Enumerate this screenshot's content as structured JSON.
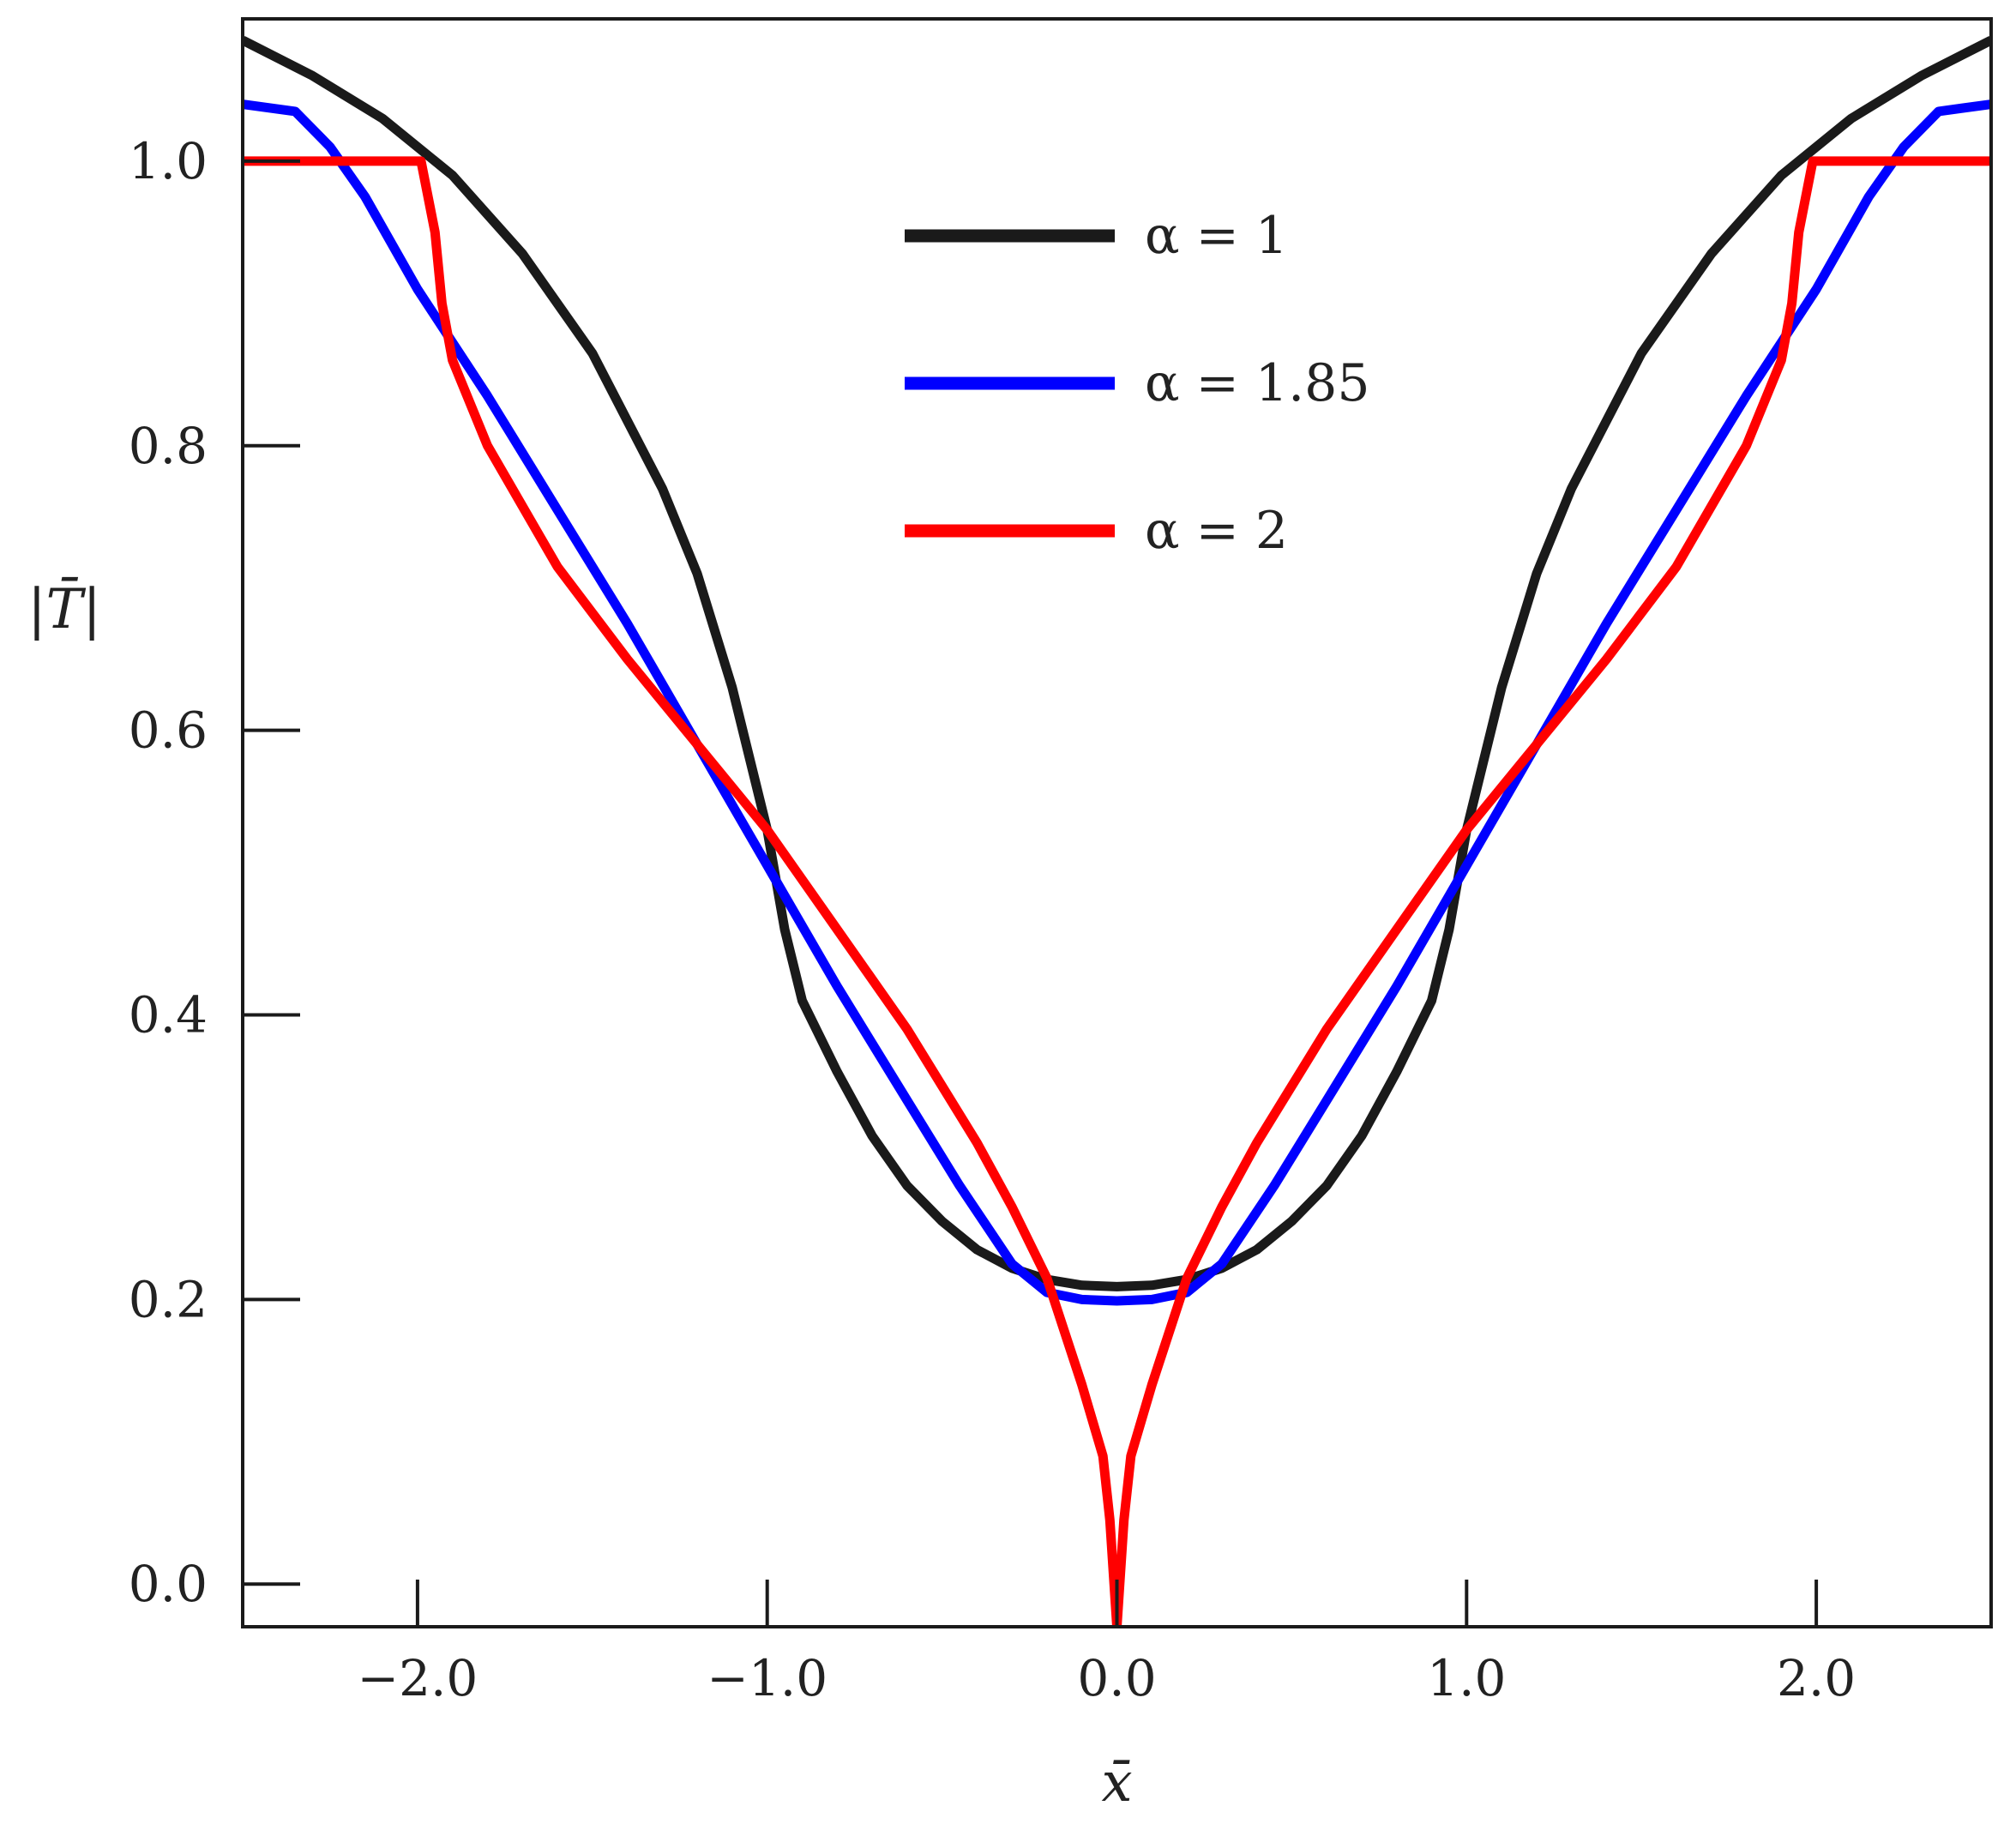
{
  "chart_data": {
    "type": "line",
    "title": "",
    "xlabel": "x̄",
    "ylabel": "|T̄|",
    "xlim": [
      -2.5,
      2.5
    ],
    "ylim": [
      -0.03,
      1.1
    ],
    "xticks": [
      -2.0,
      -1.0,
      0.0,
      1.0,
      2.0
    ],
    "xtick_labels": [
      "−2.0",
      "−1.0",
      "0.0",
      "1.0",
      "2.0"
    ],
    "yticks": [
      0.0,
      0.2,
      0.4,
      0.6,
      0.8,
      1.0
    ],
    "ytick_labels": [
      "0.0",
      "0.2",
      "0.4",
      "0.6",
      "0.8",
      "1.0"
    ],
    "grid": false,
    "legend": {
      "placement": "upper-center"
    },
    "series": [
      {
        "name": "α = 1",
        "alpha_value": "1",
        "color": "#1a1a1a",
        "points": [
          [
            -2.5,
            1.085
          ],
          [
            -2.3,
            1.06
          ],
          [
            -2.1,
            1.03
          ],
          [
            -1.9,
            0.99
          ],
          [
            -1.7,
            0.935
          ],
          [
            -1.5,
            0.865
          ],
          [
            -1.3,
            0.77
          ],
          [
            -1.2,
            0.71
          ],
          [
            -1.1,
            0.63
          ],
          [
            -1.0,
            0.53
          ],
          [
            -0.95,
            0.46
          ],
          [
            -0.9,
            0.41
          ],
          [
            -0.8,
            0.36
          ],
          [
            -0.7,
            0.315
          ],
          [
            -0.6,
            0.28
          ],
          [
            -0.5,
            0.255
          ],
          [
            -0.4,
            0.235
          ],
          [
            -0.3,
            0.222
          ],
          [
            -0.2,
            0.214
          ],
          [
            -0.1,
            0.21
          ],
          [
            0.0,
            0.209
          ],
          [
            0.1,
            0.21
          ],
          [
            0.2,
            0.214
          ],
          [
            0.3,
            0.222
          ],
          [
            0.4,
            0.235
          ],
          [
            0.5,
            0.255
          ],
          [
            0.6,
            0.28
          ],
          [
            0.7,
            0.315
          ],
          [
            0.8,
            0.36
          ],
          [
            0.9,
            0.41
          ],
          [
            0.95,
            0.46
          ],
          [
            1.0,
            0.53
          ],
          [
            1.1,
            0.63
          ],
          [
            1.2,
            0.71
          ],
          [
            1.3,
            0.77
          ],
          [
            1.5,
            0.865
          ],
          [
            1.7,
            0.935
          ],
          [
            1.9,
            0.99
          ],
          [
            2.1,
            1.03
          ],
          [
            2.3,
            1.06
          ],
          [
            2.5,
            1.085
          ]
        ]
      },
      {
        "name": "α = 1.85",
        "alpha_value": "1.85",
        "color": "#0000ff",
        "points": [
          [
            -2.5,
            1.04
          ],
          [
            -2.35,
            1.035
          ],
          [
            -2.25,
            1.01
          ],
          [
            -2.15,
            0.975
          ],
          [
            -2.0,
            0.91
          ],
          [
            -1.8,
            0.835
          ],
          [
            -1.6,
            0.755
          ],
          [
            -1.4,
            0.675
          ],
          [
            -1.2,
            0.59
          ],
          [
            -1.0,
            0.505
          ],
          [
            -0.8,
            0.42
          ],
          [
            -0.6,
            0.34
          ],
          [
            -0.45,
            0.28
          ],
          [
            -0.3,
            0.225
          ],
          [
            -0.2,
            0.205
          ],
          [
            -0.1,
            0.2
          ],
          [
            0.0,
            0.199
          ],
          [
            0.1,
            0.2
          ],
          [
            0.2,
            0.205
          ],
          [
            0.3,
            0.225
          ],
          [
            0.45,
            0.28
          ],
          [
            0.6,
            0.34
          ],
          [
            0.8,
            0.42
          ],
          [
            1.0,
            0.505
          ],
          [
            1.2,
            0.59
          ],
          [
            1.4,
            0.675
          ],
          [
            1.6,
            0.755
          ],
          [
            1.8,
            0.835
          ],
          [
            2.0,
            0.91
          ],
          [
            2.15,
            0.975
          ],
          [
            2.25,
            1.01
          ],
          [
            2.35,
            1.035
          ],
          [
            2.5,
            1.04
          ]
        ]
      },
      {
        "name": "α = 2",
        "alpha_value": "2",
        "color": "#ff0000",
        "points": [
          [
            -2.5,
            1.0
          ],
          [
            -1.99,
            1.0
          ],
          [
            -1.95,
            0.95
          ],
          [
            -1.93,
            0.9
          ],
          [
            -1.9,
            0.86
          ],
          [
            -1.8,
            0.8
          ],
          [
            -1.6,
            0.715
          ],
          [
            -1.4,
            0.65
          ],
          [
            -1.2,
            0.59
          ],
          [
            -1.0,
            0.53
          ],
          [
            -0.8,
            0.46
          ],
          [
            -0.6,
            0.39
          ],
          [
            -0.4,
            0.31
          ],
          [
            -0.3,
            0.265
          ],
          [
            -0.2,
            0.215
          ],
          [
            -0.1,
            0.14
          ],
          [
            -0.04,
            0.09
          ],
          [
            -0.02,
            0.045
          ],
          [
            0.0,
            -0.03
          ],
          [
            0.02,
            0.045
          ],
          [
            0.04,
            0.09
          ],
          [
            0.1,
            0.14
          ],
          [
            0.2,
            0.215
          ],
          [
            0.3,
            0.265
          ],
          [
            0.4,
            0.31
          ],
          [
            0.6,
            0.39
          ],
          [
            0.8,
            0.46
          ],
          [
            1.0,
            0.53
          ],
          [
            1.2,
            0.59
          ],
          [
            1.4,
            0.65
          ],
          [
            1.6,
            0.715
          ],
          [
            1.8,
            0.8
          ],
          [
            1.9,
            0.86
          ],
          [
            1.93,
            0.9
          ],
          [
            1.95,
            0.95
          ],
          [
            1.99,
            1.0
          ],
          [
            2.5,
            1.0
          ]
        ]
      }
    ]
  }
}
